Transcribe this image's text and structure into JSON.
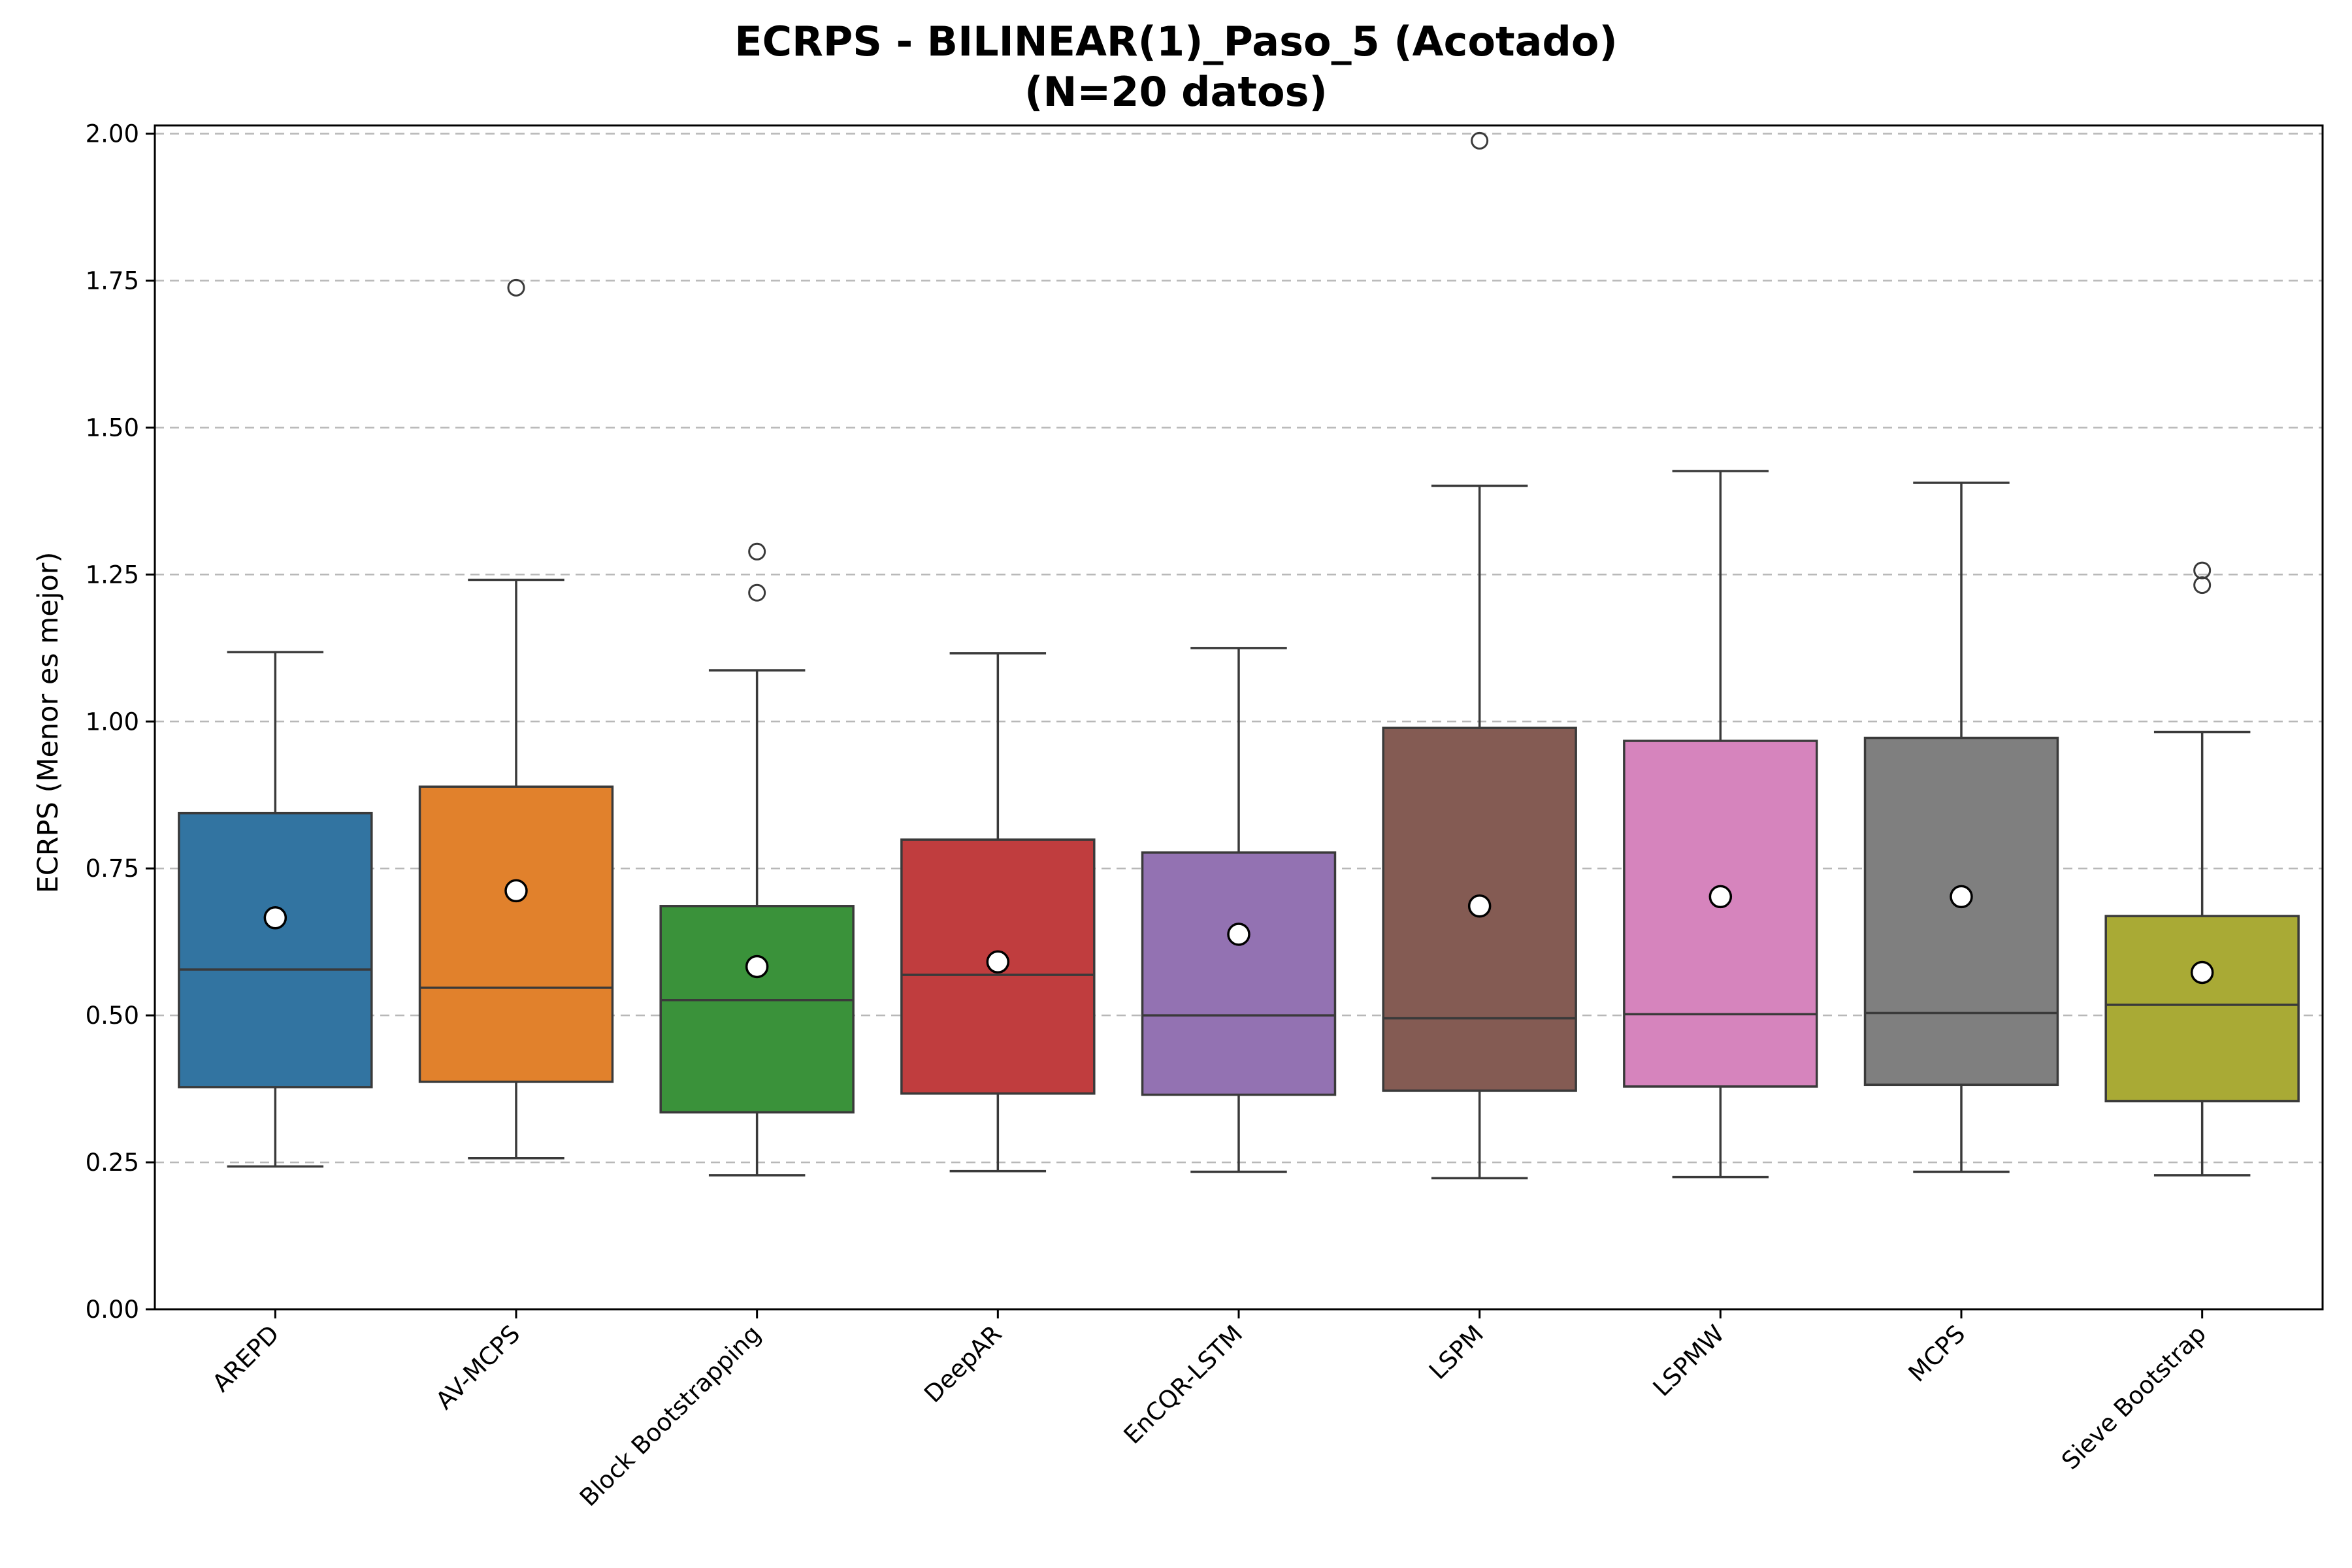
{
  "chart_data": {
    "type": "box",
    "title": [
      "ECRPS - BILINEAR(1)_Paso_5 (Acotado)",
      "(N=20 datos)"
    ],
    "xlabel": "",
    "ylabel": "ECRPS (Menor es mejor)",
    "ylim": [
      0,
      2.0
    ],
    "yticks": [
      0.0,
      0.25,
      0.5,
      0.75,
      1.0,
      1.25,
      1.5,
      1.75,
      2.0
    ],
    "ytick_labels": [
      "0.00",
      "0.25",
      "0.50",
      "0.75",
      "1.00",
      "1.25",
      "1.50",
      "1.75",
      "2.00"
    ],
    "grid": "y, dashed",
    "mean_marker": "white circle",
    "categories": [
      "AREPD",
      "AV-MCPS",
      "Block Bootstrapping",
      "DeepAR",
      "EnCQR-LSTM",
      "LSPM",
      "LSPMW",
      "MCPS",
      "Sieve Bootstrap"
    ],
    "boxes": [
      {
        "name": "AREPD",
        "color": "#3274a1",
        "whisker_low": 0.243,
        "q1": 0.378,
        "median": 0.578,
        "q3": 0.844,
        "whisker_high": 1.118,
        "mean": 0.666,
        "outliers": []
      },
      {
        "name": "AV-MCPS",
        "color": "#e1812c",
        "whisker_low": 0.257,
        "q1": 0.387,
        "median": 0.547,
        "q3": 0.889,
        "whisker_high": 1.241,
        "mean": 0.712,
        "outliers": [
          1.738
        ]
      },
      {
        "name": "Block Bootstrapping",
        "color": "#3a923a",
        "whisker_low": 0.228,
        "q1": 0.335,
        "median": 0.526,
        "q3": 0.686,
        "whisker_high": 1.087,
        "mean": 0.583,
        "outliers": [
          1.219,
          1.289
        ]
      },
      {
        "name": "DeepAR",
        "color": "#c03d3e",
        "whisker_low": 0.235,
        "q1": 0.367,
        "median": 0.569,
        "q3": 0.799,
        "whisker_high": 1.116,
        "mean": 0.591,
        "outliers": []
      },
      {
        "name": "EnCQR-LSTM",
        "color": "#9372b2",
        "whisker_low": 0.234,
        "q1": 0.365,
        "median": 0.5,
        "q3": 0.777,
        "whisker_high": 1.125,
        "mean": 0.638,
        "outliers": []
      },
      {
        "name": "LSPM",
        "color": "#845b53",
        "whisker_low": 0.223,
        "q1": 0.372,
        "median": 0.495,
        "q3": 0.989,
        "whisker_high": 1.401,
        "mean": 0.686,
        "outliers": [
          1.988
        ]
      },
      {
        "name": "LSPMW",
        "color": "#d684bd",
        "whisker_low": 0.225,
        "q1": 0.379,
        "median": 0.502,
        "q3": 0.967,
        "whisker_high": 1.426,
        "mean": 0.702,
        "outliers": []
      },
      {
        "name": "MCPS",
        "color": "#7f7f7f",
        "whisker_low": 0.234,
        "q1": 0.382,
        "median": 0.504,
        "q3": 0.972,
        "whisker_high": 1.406,
        "mean": 0.702,
        "outliers": []
      },
      {
        "name": "Sieve Bootstrap",
        "color": "#a9aa35",
        "whisker_low": 0.228,
        "q1": 0.354,
        "median": 0.518,
        "q3": 0.669,
        "whisker_high": 0.982,
        "mean": 0.573,
        "outliers": [
          1.232,
          1.257
        ]
      }
    ]
  }
}
